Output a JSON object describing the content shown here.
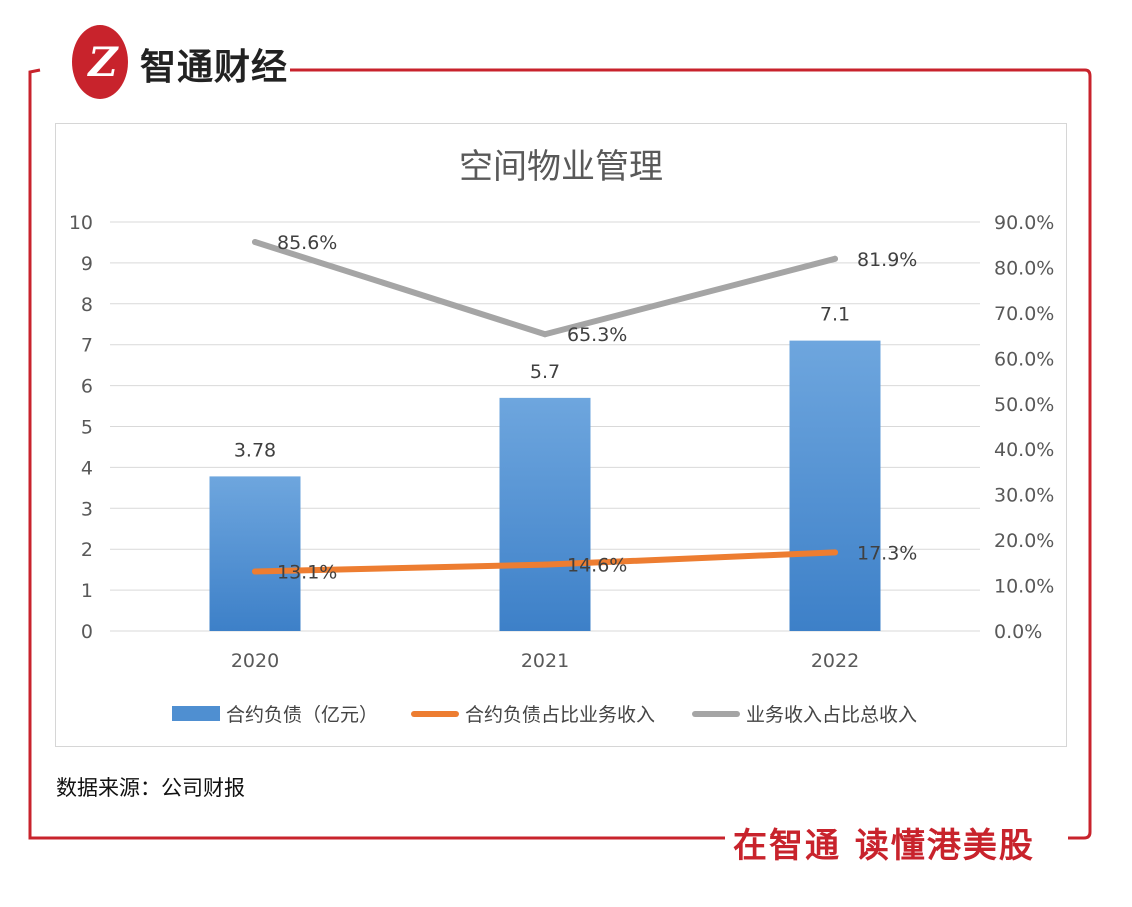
{
  "brand": {
    "logo_text": "Z",
    "name": "智通财经",
    "slogan": "在智通 读懂港美股",
    "accent": "#c8232c"
  },
  "source_note": "数据来源：公司财报",
  "chart_data": {
    "type": "bar",
    "title": "空间物业管理",
    "categories": [
      "2020",
      "2021",
      "2022"
    ],
    "series": [
      {
        "name": "合约负债（亿元）",
        "kind": "bar",
        "axis": "left",
        "values": [
          3.78,
          5.7,
          7.1
        ],
        "labels": [
          "3.78",
          "5.7",
          "7.1"
        ],
        "color": "#4f8fd1"
      },
      {
        "name": "合约负债占比业务收入",
        "kind": "line",
        "axis": "right",
        "values": [
          13.1,
          14.6,
          17.3
        ],
        "labels": [
          "13.1%",
          "14.6%",
          "17.3%"
        ],
        "color": "#ed7d31"
      },
      {
        "name": "业务收入占比总收入",
        "kind": "line",
        "axis": "right",
        "values": [
          85.6,
          65.3,
          81.9
        ],
        "labels": [
          "85.6%",
          "65.3%",
          "81.9%"
        ],
        "color": "#a5a5a5"
      }
    ],
    "y_left": {
      "min": 0,
      "max": 10,
      "ticks": [
        "0",
        "1",
        "2",
        "3",
        "4",
        "5",
        "6",
        "7",
        "8",
        "9",
        "10"
      ]
    },
    "y_right": {
      "min": 0,
      "max": 90,
      "ticks": [
        "0.0%",
        "10.0%",
        "20.0%",
        "30.0%",
        "40.0%",
        "50.0%",
        "60.0%",
        "70.0%",
        "80.0%",
        "90.0%"
      ]
    },
    "grid": true,
    "legend_position": "bottom"
  }
}
